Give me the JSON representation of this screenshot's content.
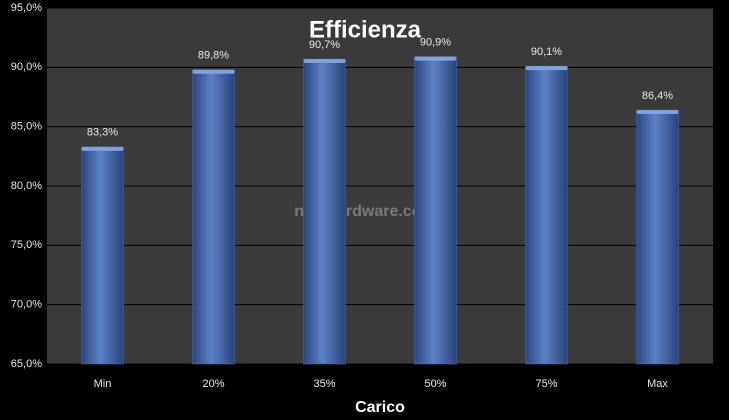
{
  "chart_data": {
    "type": "bar",
    "title": "Efficienza",
    "x_label": "Carico",
    "watermark": "nexthardware.com",
    "categories": [
      "Min",
      "20%",
      "35%",
      "50%",
      "75%",
      "Max"
    ],
    "values": [
      83.3,
      89.8,
      90.7,
      90.9,
      90.1,
      86.4
    ],
    "value_labels": [
      "83,3%",
      "89,8%",
      "90,7%",
      "90,9%",
      "90,1%",
      "86,4%"
    ],
    "color": "#4a6fb5",
    "ylim": [
      65,
      95
    ],
    "yticks": [
      {
        "value": 65,
        "label": "65,0%"
      },
      {
        "value": 70,
        "label": "70,0%"
      },
      {
        "value": 75,
        "label": "75,0%"
      },
      {
        "value": 80,
        "label": "80,0%"
      },
      {
        "value": 85,
        "label": "85,0%"
      },
      {
        "value": 90,
        "label": "90,0%"
      },
      {
        "value": 95,
        "label": "95,0%"
      }
    ],
    "grid": true
  }
}
